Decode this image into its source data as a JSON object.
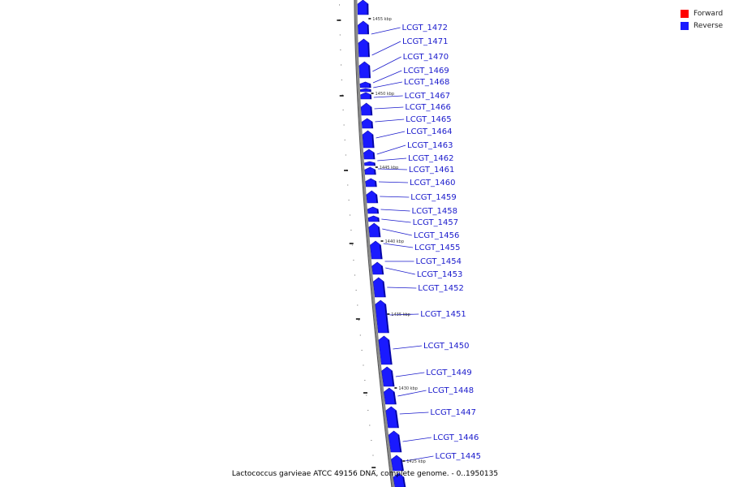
{
  "legend": {
    "forward_label": "Forward",
    "reverse_label": "Reverse",
    "forward_color": "#ff0000",
    "reverse_color": "#1a1aff"
  },
  "caption": "Lactococcus garvieae ATCC 49156 DNA, complete genome. - 0..1950135",
  "genome": {
    "strand_color": "#8a8a8a",
    "gene_color": "#1a1aff",
    "label_color": "#1a1acc"
  },
  "kbp_markers": [
    "1455 kbp",
    "1450 kbp",
    "1445 kbp",
    "1440 kbp",
    "1435 kbp",
    "1430 kbp",
    "1425 kbp"
  ],
  "genes": [
    "LCGT_1472",
    "LCGT_1471",
    "LCGT_1470",
    "LCGT_1469",
    "LCGT_1468",
    "LCGT_1467",
    "LCGT_1466",
    "LCGT_1465",
    "LCGT_1464",
    "LCGT_1463",
    "LCGT_1462",
    "LCGT_1461",
    "LCGT_1460",
    "LCGT_1459",
    "LCGT_1458",
    "LCGT_1457",
    "LCGT_1456",
    "LCGT_1455",
    "LCGT_1454",
    "LCGT_1453",
    "LCGT_1452",
    "LCGT_1451",
    "LCGT_1450",
    "LCGT_1449",
    "LCGT_1448",
    "LCGT_1447",
    "LCGT_1446",
    "LCGT_1445"
  ]
}
